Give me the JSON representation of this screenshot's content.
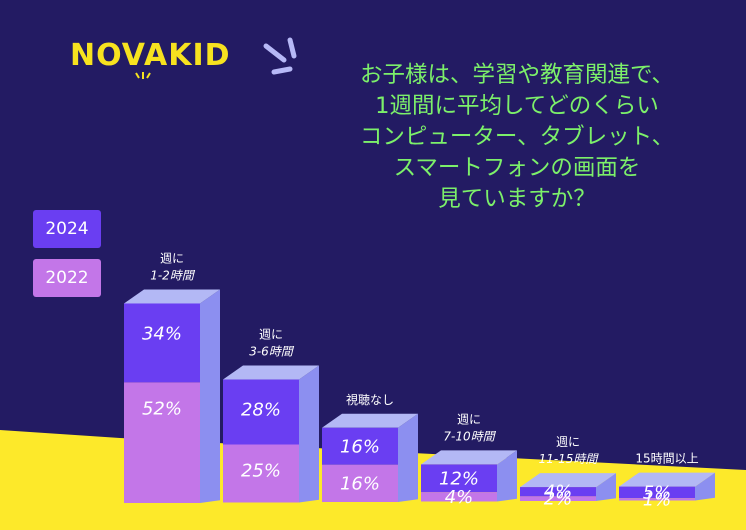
{
  "brand": {
    "logo_text": "NOVAKID"
  },
  "question": {
    "lines": [
      "お子様は、学習や教育関連で、",
      "1週間に平均してどのくらい",
      "コンピューター、タブレット、",
      "スマートフォンの画面を",
      "見ていますか？"
    ]
  },
  "colors": {
    "background": "#231b63",
    "ground": "#fde92a",
    "series_2024": "#6a3ef2",
    "series_2022": "#c376e8",
    "side_face": "#8c8ff0",
    "top_face": "#b3b8f5",
    "question_text": "#7cf06a",
    "logo": "#f7e21f"
  },
  "chart_data": {
    "type": "bar",
    "stacked": true,
    "style": "3d-column",
    "categories": [
      [
        "週に",
        "1-2時間"
      ],
      [
        "週に",
        "3-6時間"
      ],
      [
        "視聴なし"
      ],
      [
        "週に",
        "7-10時間"
      ],
      [
        "週に",
        "11-15時間"
      ],
      [
        "15時間以上"
      ]
    ],
    "series": [
      {
        "name": "2024",
        "values": [
          34,
          28,
          16,
          12,
          4,
          5
        ],
        "labels": [
          "34%",
          "28%",
          "16%",
          "12%",
          "4%",
          "5%"
        ]
      },
      {
        "name": "2022",
        "values": [
          52,
          25,
          16,
          4,
          2,
          1
        ],
        "labels": [
          "52%",
          "25%",
          "16%",
          "4%",
          "2%",
          "1%"
        ]
      }
    ],
    "legend": {
      "placement": "left",
      "entries": [
        "2024",
        "2022"
      ]
    },
    "grid": false,
    "ylim": [
      0,
      86
    ]
  }
}
